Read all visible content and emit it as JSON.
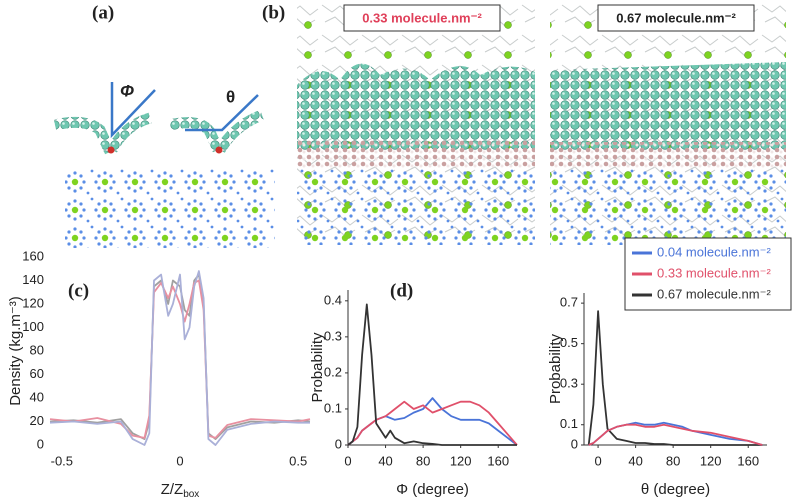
{
  "labels": {
    "a": "(a)",
    "b": "(b)",
    "phi": "Φ",
    "theta": "θ",
    "box_033": "0.33 molecule.nm⁻²",
    "box_067": "0.67 molecule.nm⁻²"
  },
  "chart_data": [
    {
      "type": "line",
      "panel_label": "(c)",
      "y_label": "Density (kg.m⁻³)",
      "x_label": "Z/Z",
      "x_label_sub": "box",
      "x": [
        -0.55,
        -0.45,
        -0.35,
        -0.25,
        -0.2,
        -0.15,
        -0.13,
        -0.11,
        -0.08,
        -0.05,
        -0.03,
        0,
        0.02,
        0.04,
        0.06,
        0.08,
        0.1,
        0.12,
        0.15,
        0.2,
        0.3,
        0.4,
        0.5,
        0.55
      ],
      "series": [
        {
          "color": "#a0a0a0",
          "values": [
            20,
            21,
            19,
            22,
            10,
            5,
            20,
            135,
            140,
            120,
            140,
            135,
            115,
            110,
            140,
            145,
            120,
            10,
            5,
            15,
            20,
            19,
            21,
            20
          ]
        },
        {
          "color": "#e890a0",
          "values": [
            22,
            20,
            23,
            18,
            8,
            6,
            25,
            130,
            138,
            125,
            135,
            120,
            105,
            120,
            138,
            140,
            115,
            8,
            6,
            17,
            22,
            21,
            20,
            22
          ]
        },
        {
          "color": "#aab0d8",
          "values": [
            19,
            20,
            18,
            20,
            5,
            0,
            10,
            140,
            145,
            110,
            120,
            145,
            90,
            100,
            135,
            148,
            125,
            5,
            0,
            13,
            18,
            20,
            19,
            19
          ]
        }
      ],
      "xlim": [
        -0.55,
        0.55
      ],
      "xticks": [
        -0.5,
        0,
        0.5
      ],
      "ylim": [
        0,
        160
      ],
      "yticks": [
        0,
        20,
        40,
        60,
        80,
        100,
        120,
        140,
        160
      ],
      "axes": false
    },
    {
      "type": "line",
      "panel_label": "(d)",
      "y_label": "Probability",
      "x_label": "Φ (degree)",
      "x": [
        0,
        5,
        10,
        15,
        20,
        25,
        30,
        40,
        45,
        50,
        60,
        70,
        80,
        90,
        100,
        110,
        120,
        130,
        140,
        150,
        160,
        170,
        180
      ],
      "series": [
        {
          "name": "0.04 molecule.nm⁻²",
          "color": "#4a74d8",
          "values": [
            0,
            0.01,
            0.02,
            0.04,
            0.05,
            0.06,
            0.07,
            0.08,
            0.075,
            0.07,
            0.075,
            0.09,
            0.1,
            0.13,
            0.1,
            0.08,
            0.07,
            0.07,
            0.07,
            0.06,
            0.04,
            0.02,
            0
          ]
        },
        {
          "name": "0.33 molecule.nm⁻²",
          "color": "#e0506a",
          "values": [
            0,
            0.01,
            0.02,
            0.04,
            0.05,
            0.06,
            0.07,
            0.08,
            0.09,
            0.1,
            0.12,
            0.1,
            0.11,
            0.09,
            0.1,
            0.11,
            0.12,
            0.12,
            0.11,
            0.09,
            0.06,
            0.03,
            0
          ]
        },
        {
          "name": "0.67 molecule.nm⁻²",
          "color": "#333333",
          "values": [
            0,
            0.01,
            0.05,
            0.25,
            0.39,
            0.25,
            0.06,
            0.02,
            0.04,
            0.02,
            0.005,
            0.01,
            0.005,
            0.003,
            0,
            0,
            0,
            0,
            0,
            0,
            0,
            0,
            0
          ]
        }
      ],
      "xlim": [
        0,
        180
      ],
      "xticks": [
        0,
        40,
        80,
        120,
        160
      ],
      "ylim": [
        0,
        0.43
      ],
      "yticks": [
        0,
        0.1,
        0.2,
        0.3,
        0.4
      ],
      "axes": true
    },
    {
      "type": "line",
      "y_label": "Probability",
      "x_label": "θ (degree)",
      "x": [
        -10,
        -5,
        0,
        5,
        10,
        20,
        30,
        40,
        50,
        60,
        70,
        80,
        90,
        100,
        120,
        140,
        160,
        175
      ],
      "series": [
        {
          "color": "#333333",
          "values": [
            0,
            0.2,
            0.66,
            0.3,
            0.08,
            0.03,
            0.02,
            0.01,
            0.01,
            0.005,
            0.005,
            0,
            0,
            0,
            0,
            0,
            0,
            0
          ]
        },
        {
          "color": "#4a74d8",
          "values": [
            0,
            0.01,
            0.03,
            0.05,
            0.07,
            0.09,
            0.1,
            0.11,
            0.1,
            0.1,
            0.11,
            0.1,
            0.09,
            0.07,
            0.05,
            0.03,
            0.02,
            0
          ]
        },
        {
          "color": "#e0506a",
          "values": [
            0,
            0.01,
            0.03,
            0.05,
            0.07,
            0.09,
            0.1,
            0.1,
            0.09,
            0.09,
            0.1,
            0.09,
            0.08,
            0.07,
            0.06,
            0.04,
            0.02,
            0
          ]
        }
      ],
      "xlim": [
        -15,
        180
      ],
      "xticks": [
        0,
        40,
        80,
        120,
        160
      ],
      "ylim": [
        0,
        0.75
      ],
      "yticks": [
        0,
        0.1,
        0.3,
        0.5,
        0.7
      ],
      "axes": true
    }
  ]
}
